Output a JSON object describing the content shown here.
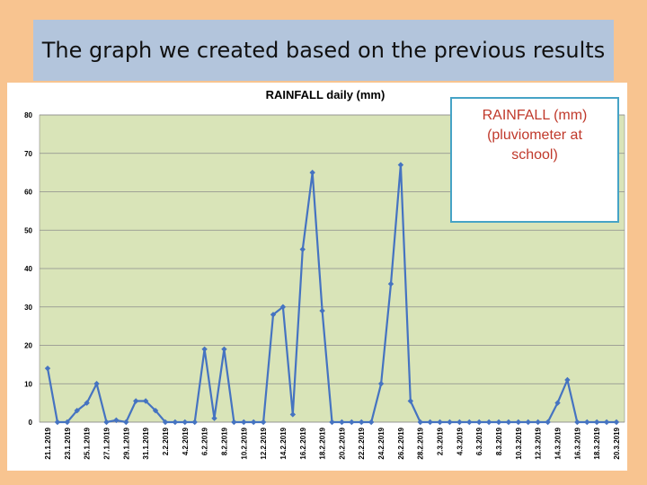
{
  "slide": {
    "title": "The graph we created based on the previous results"
  },
  "legend_note": {
    "line1": "RAINFALL (mm)",
    "line2": "(pluviometer at",
    "line3": "school)"
  },
  "colors": {
    "page_background": "#F8C490",
    "title_bar": "#B3C5DC",
    "plot_background": "#D9E4B8",
    "series_line": "#4573C1",
    "legend_text": "#C0392B",
    "legend_border": "#46A3C6"
  },
  "chart_data": {
    "type": "line",
    "title": "RAINFALL daily (mm)",
    "ylim": [
      0,
      80
    ],
    "yticks": [
      0,
      10,
      20,
      30,
      40,
      50,
      60,
      70,
      80
    ],
    "grid": "horizontal",
    "legend": "top-right",
    "categories": [
      "21.1.2019",
      "22.1.2019",
      "23.1.2019",
      "24.1.2019",
      "25.1.2019",
      "26.1.2019",
      "27.1.2019",
      "28.1.2019",
      "29.1.2019",
      "30.1.2019",
      "31.1.2019",
      "1.2.2019",
      "2.2.2019",
      "3.2.2019",
      "4.2.2019",
      "5.2.2019",
      "6.2.2019",
      "7.2.2019",
      "8.2.2019",
      "9.2.2019",
      "10.2.2019",
      "11.2.2019",
      "12.2.2019",
      "13.2.2019",
      "14.2.2019",
      "15.2.2019",
      "16.2.2019",
      "17.2.2019",
      "18.2.2019",
      "19.2.2019",
      "20.2.2019",
      "21.2.2019",
      "22.2.2019",
      "23.2.2019",
      "24.2.2019",
      "25.2.2019",
      "26.2.2019",
      "27.2.2019",
      "28.2.2019",
      "1.3.2019",
      "2.3.2019",
      "3.3.2019",
      "4.3.2019",
      "5.3.2019",
      "6.3.2019",
      "7.3.2019",
      "8.3.2019",
      "9.3.2019",
      "10.3.2019",
      "11.3.2019",
      "12.3.2019",
      "13.3.2019",
      "14.3.2019",
      "15.3.2019",
      "16.3.2019",
      "17.3.2019",
      "18.3.2019",
      "19.3.2019",
      "20.3.2019"
    ],
    "tick_labels": [
      "21.1.2019",
      "23.1.2019",
      "25.1.2019",
      "27.1.2019",
      "29.1.2019",
      "31.1.2019",
      "2.2.2019",
      "4.2.2019",
      "6.2.2019",
      "8.2.2019",
      "10.2.2019",
      "12.2.2019",
      "14.2.2019",
      "16.2.2019",
      "18.2.2019",
      "20.2.2019",
      "22.2.2019",
      "24.2.2019",
      "26.2.2019",
      "28.2.2019",
      "2.3.2019",
      "4.3.2019",
      "6.3.2019",
      "8.3.2019",
      "10.3.2019",
      "12.3.2019",
      "14.3.2019",
      "16.3.2019",
      "18.3.2019",
      "20.3.2019"
    ],
    "series": [
      {
        "values": [
          14,
          0,
          0,
          3,
          5,
          10,
          0,
          0.5,
          0,
          5.5,
          5.5,
          3,
          0,
          0,
          0,
          0,
          19,
          1,
          19,
          0,
          0,
          0,
          0,
          28,
          30,
          2,
          45,
          65,
          29,
          0,
          0,
          0,
          0,
          0,
          10,
          36,
          67,
          5.5,
          0,
          0,
          0,
          0,
          0,
          0,
          0,
          0,
          0,
          0,
          0,
          0,
          0,
          0,
          5,
          11,
          0,
          0,
          0,
          0,
          0
        ]
      }
    ]
  }
}
